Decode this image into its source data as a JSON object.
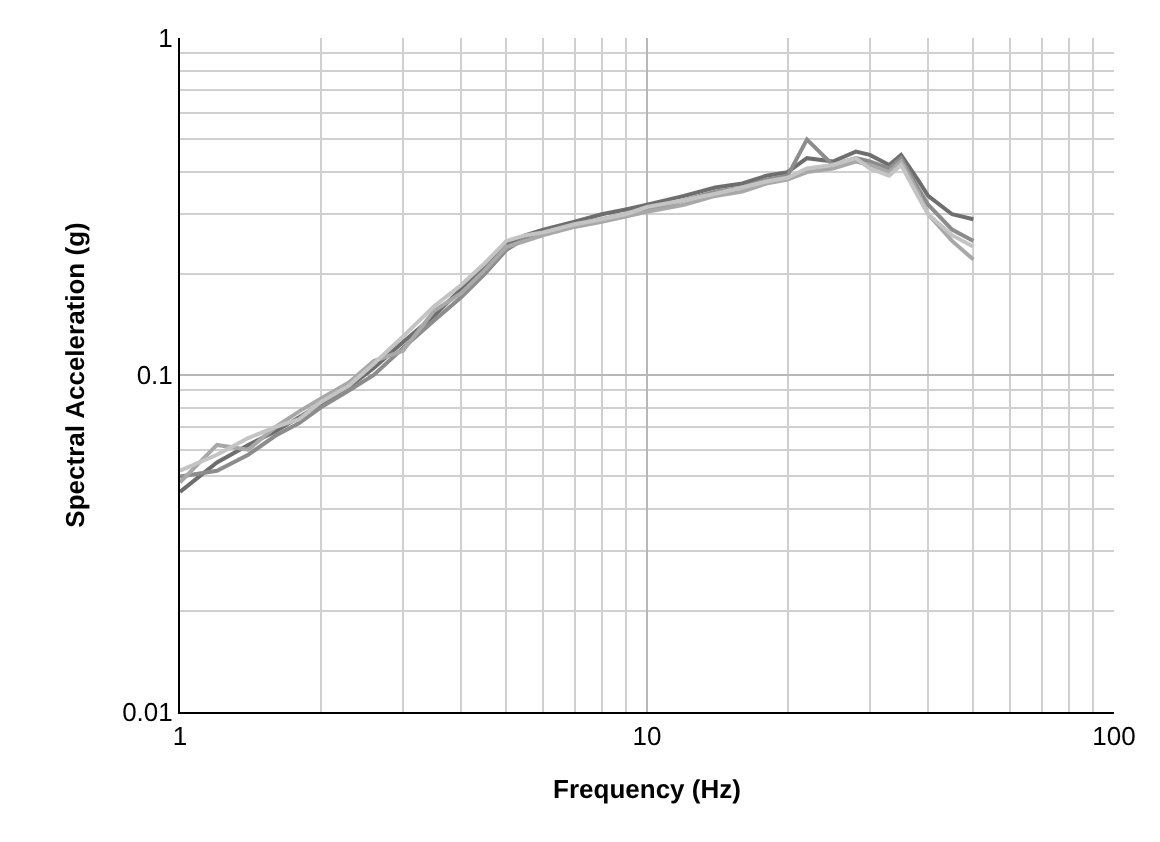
{
  "chart_data": {
    "type": "line",
    "xlabel": "Frequency (Hz)",
    "ylabel": "Spectral Acceleration (g)",
    "log": "xy",
    "grid": true,
    "marker": "none",
    "line_style": "solid",
    "legend": false,
    "xlim": [
      1,
      100
    ],
    "ylim": [
      0.01,
      1
    ],
    "xticks": [
      1,
      10,
      100
    ],
    "yticks": [
      0.01,
      0.1,
      1
    ],
    "series": [
      {
        "color": "#6e6e6e",
        "x": [
          1,
          1.2,
          1.4,
          1.6,
          1.8,
          2,
          2.3,
          2.6,
          3,
          3.5,
          4,
          4.5,
          5,
          5.5,
          6,
          7,
          8,
          9,
          10,
          12,
          14,
          16,
          18,
          20,
          22,
          25,
          28,
          30,
          33,
          35,
          38,
          40,
          45,
          50
        ],
        "values": [
          0.045,
          0.055,
          0.062,
          0.068,
          0.075,
          0.082,
          0.092,
          0.105,
          0.125,
          0.15,
          0.18,
          0.21,
          0.245,
          0.26,
          0.27,
          0.285,
          0.3,
          0.31,
          0.32,
          0.34,
          0.36,
          0.37,
          0.39,
          0.4,
          0.44,
          0.43,
          0.46,
          0.45,
          0.42,
          0.45,
          0.38,
          0.34,
          0.3,
          0.29
        ]
      },
      {
        "color": "#8c8c8c",
        "x": [
          1,
          1.2,
          1.4,
          1.6,
          1.8,
          2,
          2.3,
          2.6,
          3,
          3.5,
          4,
          4.5,
          5,
          5.5,
          6,
          7,
          8,
          9,
          10,
          12,
          14,
          16,
          18,
          20,
          22,
          25,
          28,
          30,
          33,
          35,
          38,
          40,
          45,
          50
        ],
        "values": [
          0.05,
          0.052,
          0.058,
          0.066,
          0.072,
          0.08,
          0.09,
          0.1,
          0.12,
          0.145,
          0.17,
          0.2,
          0.235,
          0.255,
          0.265,
          0.28,
          0.29,
          0.3,
          0.31,
          0.33,
          0.35,
          0.36,
          0.38,
          0.39,
          0.5,
          0.42,
          0.44,
          0.43,
          0.41,
          0.44,
          0.36,
          0.32,
          0.27,
          0.25
        ]
      },
      {
        "color": "#a8a8a8",
        "x": [
          1,
          1.2,
          1.4,
          1.6,
          1.8,
          2,
          2.3,
          2.6,
          3,
          3.5,
          4,
          4.5,
          5,
          5.5,
          6,
          7,
          8,
          9,
          10,
          12,
          14,
          16,
          18,
          20,
          22,
          25,
          28,
          30,
          33,
          35,
          38,
          40,
          45,
          50
        ],
        "values": [
          0.048,
          0.062,
          0.06,
          0.07,
          0.078,
          0.085,
          0.095,
          0.11,
          0.118,
          0.155,
          0.175,
          0.205,
          0.24,
          0.25,
          0.26,
          0.275,
          0.285,
          0.295,
          0.305,
          0.32,
          0.34,
          0.35,
          0.37,
          0.38,
          0.4,
          0.41,
          0.43,
          0.42,
          0.4,
          0.43,
          0.35,
          0.3,
          0.25,
          0.22
        ]
      },
      {
        "color": "#c4c4c4",
        "x": [
          1,
          1.2,
          1.4,
          1.6,
          1.8,
          2,
          2.3,
          2.6,
          3,
          3.5,
          4,
          4.5,
          5,
          5.5,
          6,
          7,
          8,
          9,
          10,
          12,
          14,
          16,
          18,
          20,
          22,
          25,
          28,
          30,
          33,
          35,
          38,
          40,
          45,
          50
        ],
        "values": [
          0.052,
          0.058,
          0.065,
          0.07,
          0.074,
          0.083,
          0.093,
          0.108,
          0.13,
          0.16,
          0.185,
          0.215,
          0.25,
          0.26,
          0.265,
          0.28,
          0.29,
          0.3,
          0.315,
          0.33,
          0.345,
          0.36,
          0.375,
          0.385,
          0.41,
          0.42,
          0.44,
          0.41,
          0.39,
          0.42,
          0.34,
          0.3,
          0.26,
          0.24
        ]
      }
    ]
  }
}
